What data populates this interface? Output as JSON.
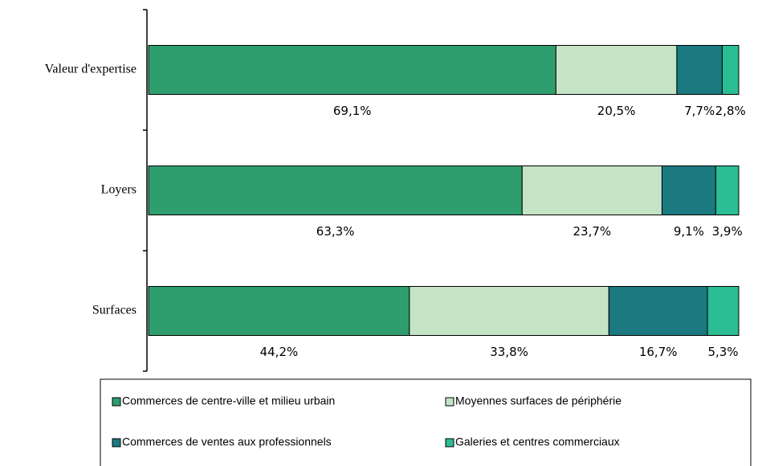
{
  "chart_data": {
    "type": "bar",
    "orientation": "horizontal",
    "stacked": true,
    "categories": [
      "Valeur d'expertise",
      "Loyers",
      "Surfaces"
    ],
    "series": [
      {
        "name": "Commerces de centre-ville et milieu urbain",
        "color": "#2e9e6e",
        "values": [
          69.1,
          63.3,
          44.2
        ],
        "value_labels": [
          "69,1%",
          "63,3%",
          "44,2%"
        ]
      },
      {
        "name": "Moyennes surfaces de périphérie",
        "color": "#c5e4c5",
        "values": [
          20.5,
          23.7,
          33.8
        ],
        "value_labels": [
          "20,5%",
          "23,7%",
          "33,8%"
        ]
      },
      {
        "name": "Commerces de ventes aux professionnels",
        "color": "#1a7a80",
        "values": [
          7.7,
          9.1,
          16.7
        ],
        "value_labels": [
          "7,7%",
          "9,1%",
          "16,7%"
        ]
      },
      {
        "name": "Galeries et centres commerciaux",
        "color": "#2bbd94",
        "values": [
          2.8,
          3.9,
          5.3
        ],
        "value_labels": [
          "2,8%",
          "3,9%",
          "5,3%"
        ]
      }
    ],
    "legend": "bottom"
  }
}
